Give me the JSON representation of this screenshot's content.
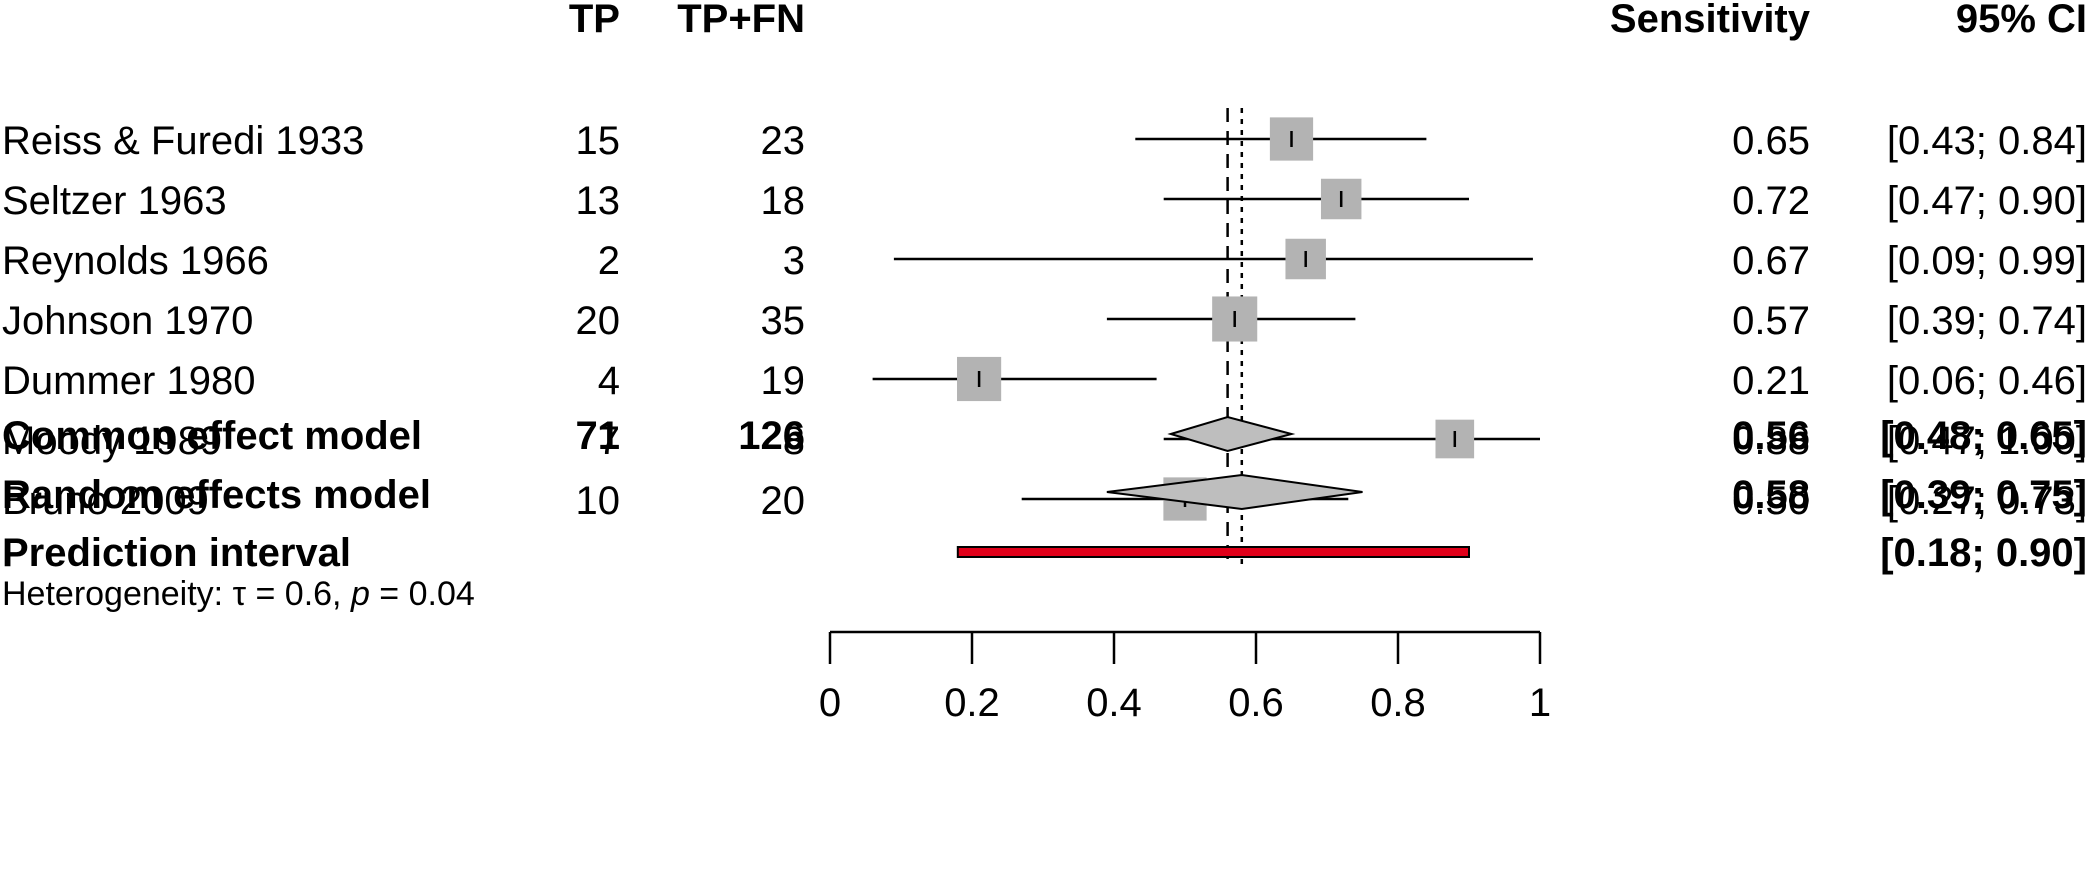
{
  "headers": {
    "tp": "TP",
    "tp_fn": "TP+FN",
    "sensitivity": "Sensitivity",
    "ci": "95% CI"
  },
  "studies": [
    {
      "name": "Reiss & Furedi 1933",
      "tp": "15",
      "total": "23",
      "sens_label": "0.65",
      "ci_label": "[0.43; 0.84]",
      "estimate": 0.65,
      "lower": 0.43,
      "upper": 0.84,
      "weight_size": 0.94
    },
    {
      "name": "Seltzer 1963",
      "tp": "13",
      "total": "18",
      "sens_label": "0.72",
      "ci_label": "[0.47; 0.90]",
      "estimate": 0.72,
      "lower": 0.47,
      "upper": 0.9,
      "weight_size": 0.88
    },
    {
      "name": "Reynolds 1966",
      "tp": "2",
      "total": "3",
      "sens_label": "0.67",
      "ci_label": "[0.09; 0.99]",
      "estimate": 0.67,
      "lower": 0.09,
      "upper": 0.99,
      "weight_size": 0.88
    },
    {
      "name": "Johnson 1970",
      "tp": "20",
      "total": "35",
      "sens_label": "0.57",
      "ci_label": "[0.39; 0.74]",
      "estimate": 0.57,
      "lower": 0.39,
      "upper": 0.74,
      "weight_size": 0.98
    },
    {
      "name": "Dummer 1980",
      "tp": "4",
      "total": "19",
      "sens_label": "0.21",
      "ci_label": "[0.06; 0.46]",
      "estimate": 0.21,
      "lower": 0.06,
      "upper": 0.46,
      "weight_size": 0.96
    },
    {
      "name": "Moody 1989",
      "tp": "7",
      "total": "8",
      "sens_label": "0.88",
      "ci_label": "[0.47; 1.00]",
      "estimate": 0.88,
      "lower": 0.47,
      "upper": 1.0,
      "weight_size": 0.84
    },
    {
      "name": "Bruno 2009",
      "tp": "10",
      "total": "20",
      "sens_label": "0.50",
      "ci_label": "[0.27; 0.73]",
      "estimate": 0.5,
      "lower": 0.27,
      "upper": 0.73,
      "weight_size": 0.94
    }
  ],
  "summary": {
    "common": {
      "label": "Common effect model",
      "tp": "71",
      "total": "126",
      "sens_label": "0.56",
      "ci_label": "[0.48; 0.65]",
      "estimate": 0.56,
      "lower": 0.48,
      "upper": 0.65
    },
    "random": {
      "label": "Random effects model",
      "sens_label": "0.58",
      "ci_label": "[0.39; 0.75]",
      "estimate": 0.58,
      "lower": 0.39,
      "upper": 0.75
    },
    "prediction": {
      "label": "Prediction interval",
      "ci_label": "[0.18; 0.90]",
      "lower": 0.18,
      "upper": 0.9
    }
  },
  "heterogeneity": {
    "prefix": "Heterogeneity: ",
    "tau_symbol": "τ",
    "tau_value": " = 0.6, ",
    "p_symbol": "p",
    "p_value": " = 0.04"
  },
  "chart_data": {
    "type": "forest",
    "x_range": [
      0,
      1
    ],
    "x_ticks": [
      0,
      0.2,
      0.4,
      0.6,
      0.8,
      1
    ],
    "x_tick_labels": [
      "0",
      "0.2",
      "0.4",
      "0.6",
      "0.8",
      "1"
    ],
    "reference_lines": {
      "common_effect": 0.56,
      "random_effects": 0.58
    },
    "colors": {
      "square": "#b3b3b3",
      "diamond": "#bebebe",
      "prediction": "#e0001a",
      "line": "#000000"
    }
  }
}
